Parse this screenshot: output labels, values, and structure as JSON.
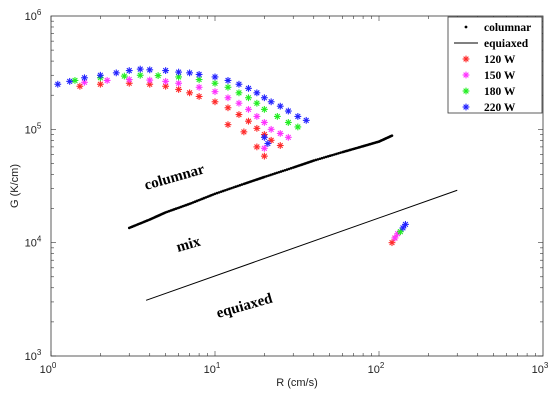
{
  "chart_data": {
    "type": "scatter",
    "title": "",
    "xlabel": "R (cm/s)",
    "ylabel": "G (K/cm)",
    "xscale": "log",
    "yscale": "log",
    "xlim": [
      1,
      1000
    ],
    "ylim": [
      1000,
      1000000
    ],
    "grid": false,
    "legend_position": "top-right",
    "x_ticks": [
      {
        "base": "10",
        "exp": "0"
      },
      {
        "base": "10",
        "exp": "1"
      },
      {
        "base": "10",
        "exp": "2"
      },
      {
        "base": "10",
        "exp": "3"
      }
    ],
    "y_ticks": [
      {
        "base": "10",
        "exp": "3"
      },
      {
        "base": "10",
        "exp": "4"
      },
      {
        "base": "10",
        "exp": "5"
      },
      {
        "base": "10",
        "exp": "6"
      }
    ],
    "region_labels": [
      "columnar",
      "mix",
      "equiaxed"
    ],
    "series": [
      {
        "name": "columnar",
        "marker": "dot",
        "color": "#000000",
        "x": [
          3,
          4,
          5,
          7,
          10,
          15,
          20,
          30,
          40,
          60,
          80,
          100,
          120
        ],
        "y": [
          13500,
          16000,
          18500,
          22000,
          27000,
          33000,
          38000,
          46000,
          53000,
          63000,
          71000,
          78000,
          88000
        ]
      },
      {
        "name": "equiaxed",
        "marker": "line",
        "color": "#000000",
        "x": [
          3.8,
          300
        ],
        "y": [
          3100,
          29000
        ]
      },
      {
        "name": "120 W",
        "marker": "asterisk",
        "color": "#ff2a2a",
        "x": [
          1.5,
          2,
          3,
          4,
          5,
          6,
          7,
          8,
          10,
          12,
          14,
          16,
          18,
          20,
          22,
          25,
          12,
          15,
          18,
          20,
          120,
          125
        ],
        "y": [
          240000,
          250000,
          255000,
          250000,
          240000,
          225000,
          210000,
          195000,
          175000,
          155000,
          135000,
          118000,
          102000,
          90000,
          80000,
          72000,
          110000,
          95000,
          70000,
          58000,
          10000,
          11000
        ]
      },
      {
        "name": "150 W",
        "marker": "asterisk",
        "color": "#ff33ff",
        "x": [
          1.6,
          2.2,
          3,
          4,
          5,
          6,
          8,
          10,
          12,
          14,
          16,
          18,
          20,
          22,
          25,
          28,
          20,
          125,
          130
        ],
        "y": [
          260000,
          270000,
          275000,
          272000,
          265000,
          255000,
          235000,
          215000,
          190000,
          170000,
          150000,
          130000,
          115000,
          100000,
          92000,
          85000,
          68000,
          11000,
          12000
        ]
      },
      {
        "name": "180 W",
        "marker": "asterisk",
        "color": "#22ee22",
        "x": [
          1.4,
          2,
          2.8,
          3.5,
          4.5,
          6,
          8,
          10,
          12,
          14,
          16,
          18,
          20,
          24,
          28,
          32,
          135
        ],
        "y": [
          270000,
          285000,
          295000,
          300000,
          298000,
          290000,
          275000,
          255000,
          235000,
          210000,
          190000,
          170000,
          150000,
          130000,
          115000,
          105000,
          12500
        ]
      },
      {
        "name": "220 W",
        "marker": "asterisk",
        "color": "#2222ff",
        "x": [
          1.1,
          1.3,
          1.6,
          2,
          2.5,
          3,
          3.5,
          4,
          5,
          6,
          7,
          8,
          10,
          12,
          14,
          16,
          18,
          20,
          22,
          25,
          28,
          32,
          36,
          20,
          21,
          140,
          145
        ],
        "y": [
          250000,
          265000,
          285000,
          300000,
          315000,
          330000,
          340000,
          335000,
          330000,
          320000,
          315000,
          305000,
          290000,
          270000,
          250000,
          230000,
          210000,
          190000,
          175000,
          160000,
          145000,
          130000,
          120000,
          85000,
          75000,
          13500,
          14500
        ]
      }
    ]
  }
}
